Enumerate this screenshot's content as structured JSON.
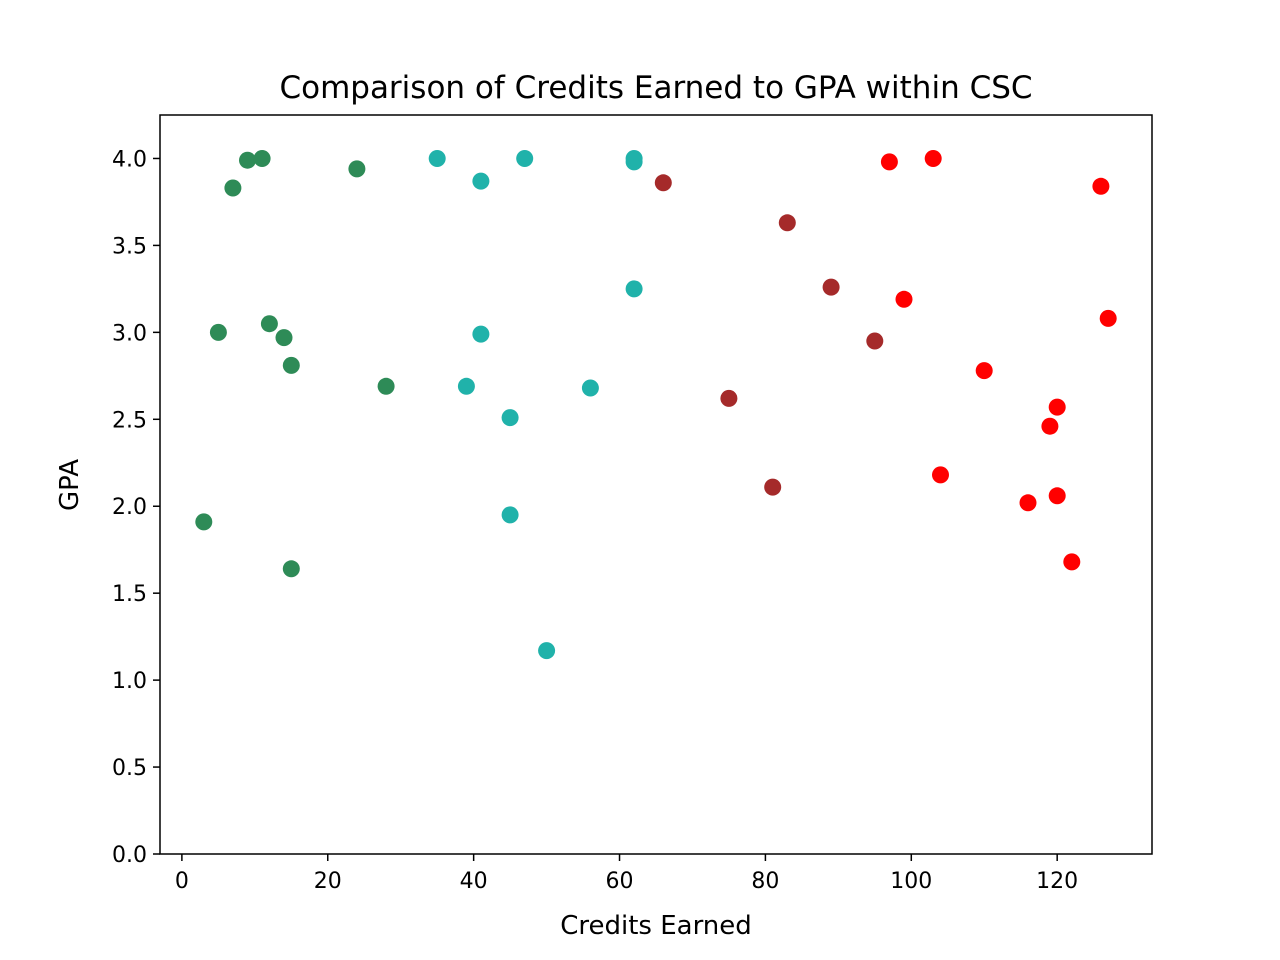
{
  "chart_data": {
    "type": "scatter",
    "title": "Comparison of Credits Earned to GPA within CSC",
    "xlabel": "Credits Earned",
    "ylabel": "GPA",
    "xlim": [
      -3,
      133
    ],
    "ylim": [
      0,
      4.25
    ],
    "grid": false,
    "legend": "none",
    "xticks": [
      0,
      20,
      40,
      60,
      80,
      100,
      120
    ],
    "yticks": [
      0.0,
      0.5,
      1.0,
      1.5,
      2.0,
      2.5,
      3.0,
      3.5,
      4.0
    ],
    "series": [
      {
        "color": "#2e8b57",
        "points": [
          [
            3,
            1.91
          ],
          [
            5,
            3.0
          ],
          [
            7,
            3.83
          ],
          [
            9,
            3.99
          ],
          [
            11,
            4.0
          ],
          [
            12,
            3.05
          ],
          [
            14,
            2.97
          ],
          [
            15,
            2.81
          ],
          [
            15,
            1.64
          ],
          [
            24,
            3.94
          ],
          [
            28,
            2.69
          ]
        ]
      },
      {
        "color": "#20b2aa",
        "points": [
          [
            35,
            4.0
          ],
          [
            39,
            2.69
          ],
          [
            41,
            3.87
          ],
          [
            41,
            2.99
          ],
          [
            45,
            2.51
          ],
          [
            45,
            1.95
          ],
          [
            47,
            4.0
          ],
          [
            50,
            1.17
          ],
          [
            56,
            2.68
          ],
          [
            62,
            4.0
          ],
          [
            62,
            3.98
          ],
          [
            62,
            3.25
          ]
        ]
      },
      {
        "color": "#a52a2a",
        "points": [
          [
            66,
            3.86
          ],
          [
            75,
            2.62
          ],
          [
            81,
            2.11
          ],
          [
            83,
            3.63
          ],
          [
            89,
            3.26
          ],
          [
            95,
            2.95
          ]
        ]
      },
      {
        "color": "#ff0000",
        "points": [
          [
            97,
            3.98
          ],
          [
            99,
            3.19
          ],
          [
            103,
            4.0
          ],
          [
            104,
            2.18
          ],
          [
            110,
            2.78
          ],
          [
            116,
            2.02
          ],
          [
            119,
            2.46
          ],
          [
            120,
            2.57
          ],
          [
            120,
            2.06
          ],
          [
            122,
            1.68
          ],
          [
            126,
            3.84
          ],
          [
            127,
            3.08
          ]
        ]
      }
    ]
  }
}
